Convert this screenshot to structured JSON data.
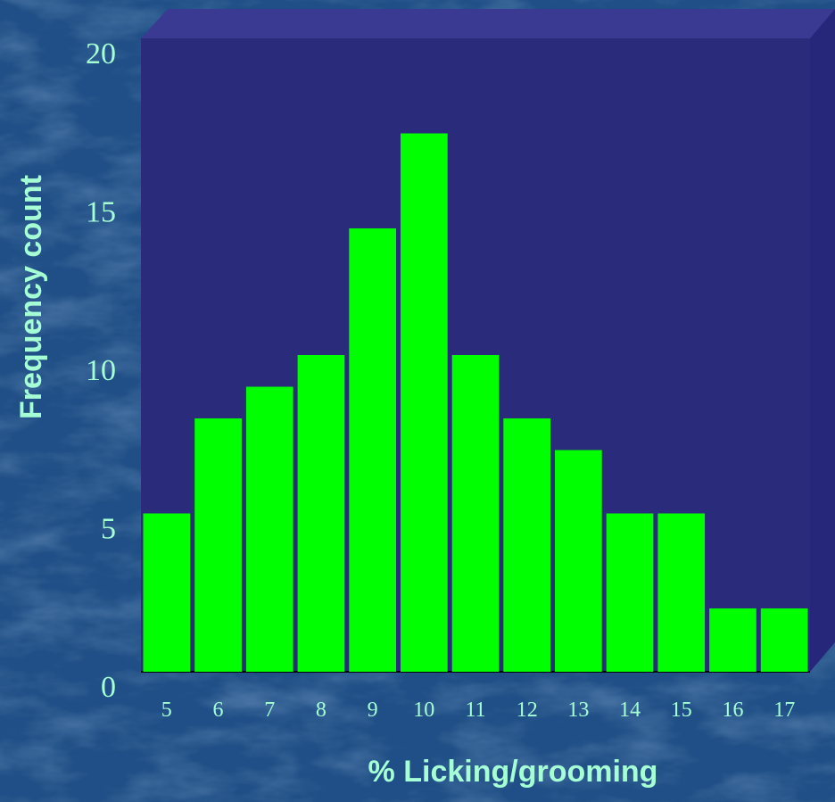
{
  "chart_data": {
    "type": "bar",
    "title": "",
    "xlabel": "% Licking/grooming",
    "ylabel": "Frequency count",
    "categories": [
      "5",
      "6",
      "7",
      "8",
      "9",
      "10",
      "11",
      "12",
      "13",
      "14",
      "15",
      "16",
      "17"
    ],
    "values": [
      5,
      8,
      9,
      10,
      14,
      17,
      10,
      8,
      7,
      5,
      5,
      2,
      2
    ],
    "ylim": [
      0,
      20
    ],
    "yticks": [
      0,
      5,
      10,
      15,
      20
    ],
    "grid": false,
    "legend": "none",
    "colors": {
      "bar": "#00ff00",
      "plot_background": "#2b2b7b",
      "plot_side": "#26267a",
      "plot_top": "#3a3a93",
      "page_background": "#1f4f86",
      "text": "#a6ffd4"
    }
  }
}
